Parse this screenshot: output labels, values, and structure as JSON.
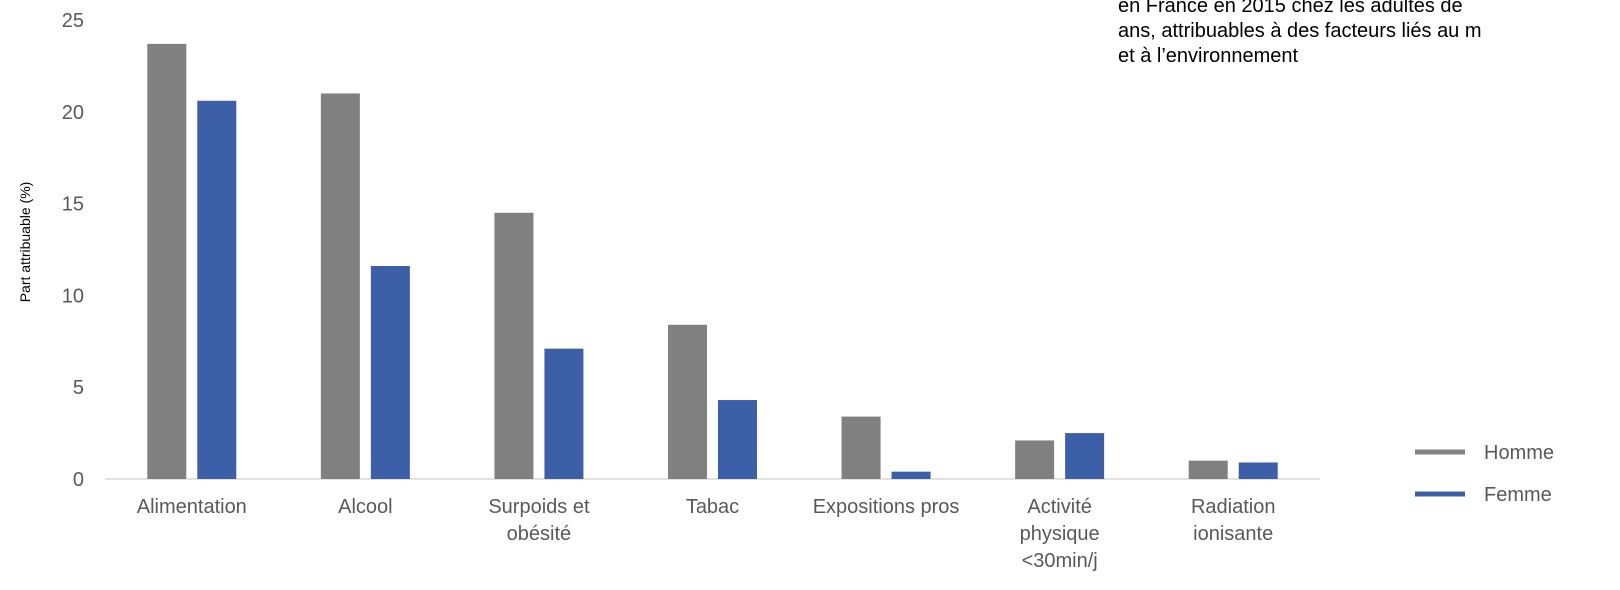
{
  "note": {
    "lines": [
      "en France en 2015 chez les adultes de",
      "ans, attribuables à des facteurs liés au m",
      "et à l’environnement"
    ]
  },
  "chart_data": {
    "type": "bar",
    "title": "",
    "xlabel": "",
    "ylabel": "Part attribuable (%)",
    "ylim": [
      0,
      25
    ],
    "yticks": [
      0,
      5,
      10,
      15,
      20,
      25
    ],
    "grid": false,
    "legend_position": "right",
    "categories": [
      [
        "Alimentation"
      ],
      [
        "Alcool"
      ],
      [
        "Surpoids et",
        "obésité"
      ],
      [
        "Tabac"
      ],
      [
        "Expositions pros"
      ],
      [
        "Activité",
        "physique",
        "<30min/j"
      ],
      [
        "Radiation",
        "ionisante"
      ]
    ],
    "series": [
      {
        "name": "Homme",
        "color": "#808080",
        "values": [
          23.7,
          21.0,
          14.5,
          8.4,
          3.4,
          2.1,
          1.0
        ]
      },
      {
        "name": "Femme",
        "color": "#3d5fa8",
        "values": [
          20.6,
          11.6,
          7.1,
          4.3,
          0.4,
          2.5,
          0.9
        ]
      }
    ]
  }
}
